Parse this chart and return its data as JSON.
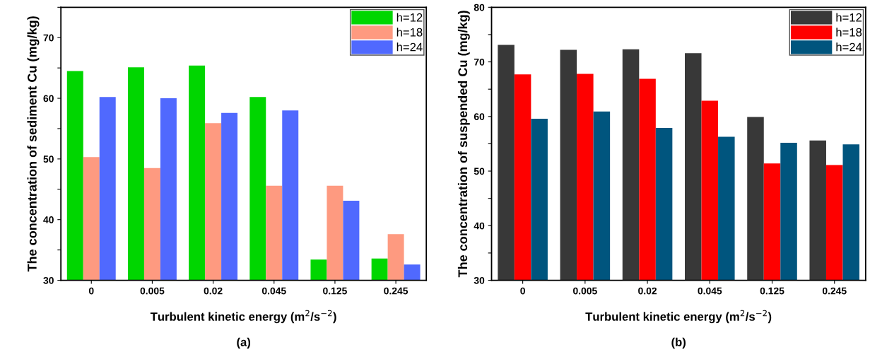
{
  "chart_data": [
    {
      "type": "bar",
      "categories": [
        "0",
        "0.005",
        "0.02",
        "0.045",
        "0.125",
        "0.245"
      ],
      "xlabel": "Turbulent kinetic energy (m$^{2}$/s$^{−2}$)",
      "ylabel": "The concentration of sediment Cu (mg/kg)",
      "annotations": [
        "(a)"
      ],
      "ylim": [
        30,
        75
      ],
      "yticks": [
        30,
        {
          "value": 35,
          "label": null
        },
        40,
        {
          "value": 45,
          "label": null
        },
        50,
        {
          "value": 55,
          "label": null
        },
        60,
        {
          "value": 65,
          "label": null
        },
        70,
        {
          "value": 75,
          "label": null
        }
      ],
      "legend": "top right",
      "grid": false,
      "series": [
        {
          "name": "h=12",
          "color": "#00d600",
          "values": [
            64.5,
            65.1,
            65.4,
            60.2,
            33.4,
            33.6
          ]
        },
        {
          "name": "h=18",
          "color": "#fe9a80",
          "values": [
            50.3,
            48.5,
            55.9,
            45.6,
            45.6,
            37.6
          ]
        },
        {
          "name": "h=24",
          "color": "#5069fe",
          "values": [
            60.2,
            60.0,
            57.6,
            58.0,
            43.1,
            32.6
          ]
        }
      ]
    },
    {
      "type": "bar",
      "categories": [
        "0",
        "0.005",
        "0.02",
        "0.045",
        "0.125",
        "0.245"
      ],
      "xlabel": "Turbulent kinetic energy (m$^{2}$/s$^{−2}$)",
      "ylabel": "The concentration of suspended Cu (mg/kg)",
      "annotations": [
        "(b)"
      ],
      "ylim": [
        30,
        80
      ],
      "yticks": [
        30,
        {
          "value": 35,
          "label": null
        },
        40,
        {
          "value": 45,
          "label": null
        },
        50,
        {
          "value": 55,
          "label": null
        },
        60,
        {
          "value": 65,
          "label": null
        },
        70,
        {
          "value": 75,
          "label": null
        },
        80
      ],
      "legend": "top right",
      "grid": false,
      "series": [
        {
          "name": "h=12",
          "color": "#383838",
          "values": [
            73.1,
            72.2,
            72.3,
            71.6,
            59.9,
            55.6
          ]
        },
        {
          "name": "h=18",
          "color": "#fe0000",
          "values": [
            67.7,
            67.8,
            66.9,
            62.9,
            51.4,
            51.1
          ]
        },
        {
          "name": "h=24",
          "color": "#00557e",
          "values": [
            59.6,
            60.9,
            57.9,
            56.3,
            55.2,
            54.9
          ]
        }
      ]
    }
  ]
}
